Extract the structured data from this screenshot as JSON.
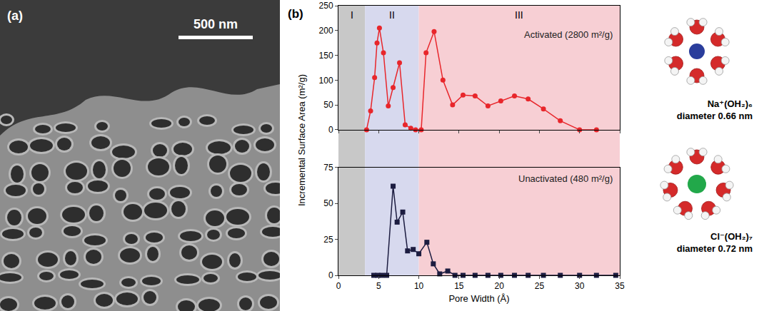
{
  "sem_image": {
    "label": "(a)",
    "scale_bar": "500 nm"
  },
  "panel_label": "(b)",
  "chart_data": [
    {
      "type": "line",
      "y_label": "Incremental Surface Area (m²/g)",
      "annotations": [
        "Activated (2800 m²/g)"
      ],
      "regions": [
        {
          "label": "I",
          "from": 0,
          "to": 3.3,
          "color": "#c8c8c8"
        },
        {
          "label": "II",
          "from": 3.3,
          "to": 10,
          "color": "#d7d9ee"
        },
        {
          "label": "III",
          "from": 10,
          "to": 35,
          "color": "#f7cfd4"
        }
      ],
      "xlim": [
        0,
        35
      ],
      "xticks": [
        0,
        5,
        10,
        15,
        20,
        25,
        30,
        35
      ],
      "ylim": [
        0,
        250
      ],
      "yticks": [
        0,
        50,
        100,
        150,
        200,
        250
      ],
      "tick_labels": "y",
      "x": [
        3.5,
        4.0,
        4.5,
        4.8,
        5.1,
        5.6,
        6.2,
        6.8,
        7.6,
        8.3,
        9.0,
        9.6,
        10.3,
        10.9,
        11.9,
        13.0,
        14.2,
        15.5,
        17.0,
        18.6,
        20.2,
        21.9,
        23.6,
        25.5,
        27.6,
        30.0,
        32.1
      ],
      "series": [
        {
          "color": "#e8262b",
          "marker": "circle",
          "values": [
            0,
            38,
            105,
            175,
            205,
            155,
            48,
            85,
            135,
            10,
            3,
            0,
            0,
            155,
            198,
            100,
            50,
            70,
            68,
            48,
            58,
            68,
            62,
            42,
            18,
            0,
            0
          ]
        }
      ]
    },
    {
      "type": "line",
      "x_label": "Pore Width (Å)",
      "annotations": [
        "Unactivated (480 m²/g)"
      ],
      "xlim": [
        0,
        35
      ],
      "xticks": [
        0,
        5,
        10,
        15,
        20,
        25,
        30,
        35
      ],
      "ylim": [
        0,
        75
      ],
      "yticks": [
        0,
        25,
        50,
        75
      ],
      "x": [
        4.4,
        4.9,
        5.4,
        6.0,
        6.8,
        7.3,
        8.0,
        8.6,
        9.3,
        10.0,
        11.0,
        11.8,
        12.6,
        13.6,
        14.5,
        15.5,
        17.0,
        18.6,
        20.2,
        21.9,
        23.6,
        25.5,
        27.6,
        30.0,
        32.1,
        34.5
      ],
      "series": [
        {
          "color": "#1c1c40",
          "marker": "square",
          "values": [
            0,
            0,
            0,
            0,
            62,
            37,
            44,
            17,
            18,
            15,
            23,
            8,
            1,
            3,
            0,
            0,
            0,
            0,
            0,
            0,
            0,
            0,
            0,
            0,
            0,
            0
          ]
        }
      ]
    }
  ],
  "molecules": [
    {
      "ion": "Na⁺(OH₂)₆",
      "caption": "diameter 0.66 nm",
      "ion_color": "#2a3d9c",
      "waters": 6
    },
    {
      "ion": "Cl⁻(OH₂)₇",
      "caption": "diameter 0.72 nm",
      "ion_color": "#22a84a",
      "waters": 7
    }
  ]
}
